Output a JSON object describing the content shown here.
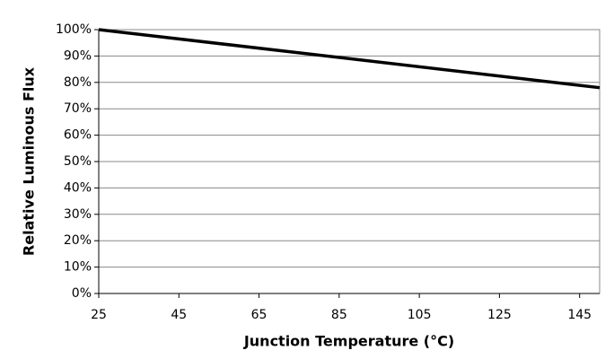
{
  "chart_data": {
    "type": "line",
    "x_label": "Junction Temperature (°C)",
    "y_label": "Relative Luminous Flux",
    "x": [
      25,
      150
    ],
    "series": [
      {
        "name": "Relative Luminous Flux",
        "color": "#000000",
        "values": [
          100,
          78
        ]
      }
    ],
    "xlim": [
      25,
      150
    ],
    "xticks": [
      25,
      45,
      65,
      85,
      105,
      125,
      145
    ],
    "ylim": [
      0,
      100
    ],
    "yticks": [
      {
        "value": 0,
        "label": "0%"
      },
      {
        "value": 10,
        "label": "10%"
      },
      {
        "value": 20,
        "label": "20%"
      },
      {
        "value": 30,
        "label": "30%"
      },
      {
        "value": 40,
        "label": "40%"
      },
      {
        "value": 50,
        "label": "50%"
      },
      {
        "value": 60,
        "label": "60%"
      },
      {
        "value": 70,
        "label": "70%"
      },
      {
        "value": 80,
        "label": "80%"
      },
      {
        "value": 90,
        "label": "90%"
      },
      {
        "value": 100,
        "label": "100%"
      }
    ],
    "grid": true
  }
}
